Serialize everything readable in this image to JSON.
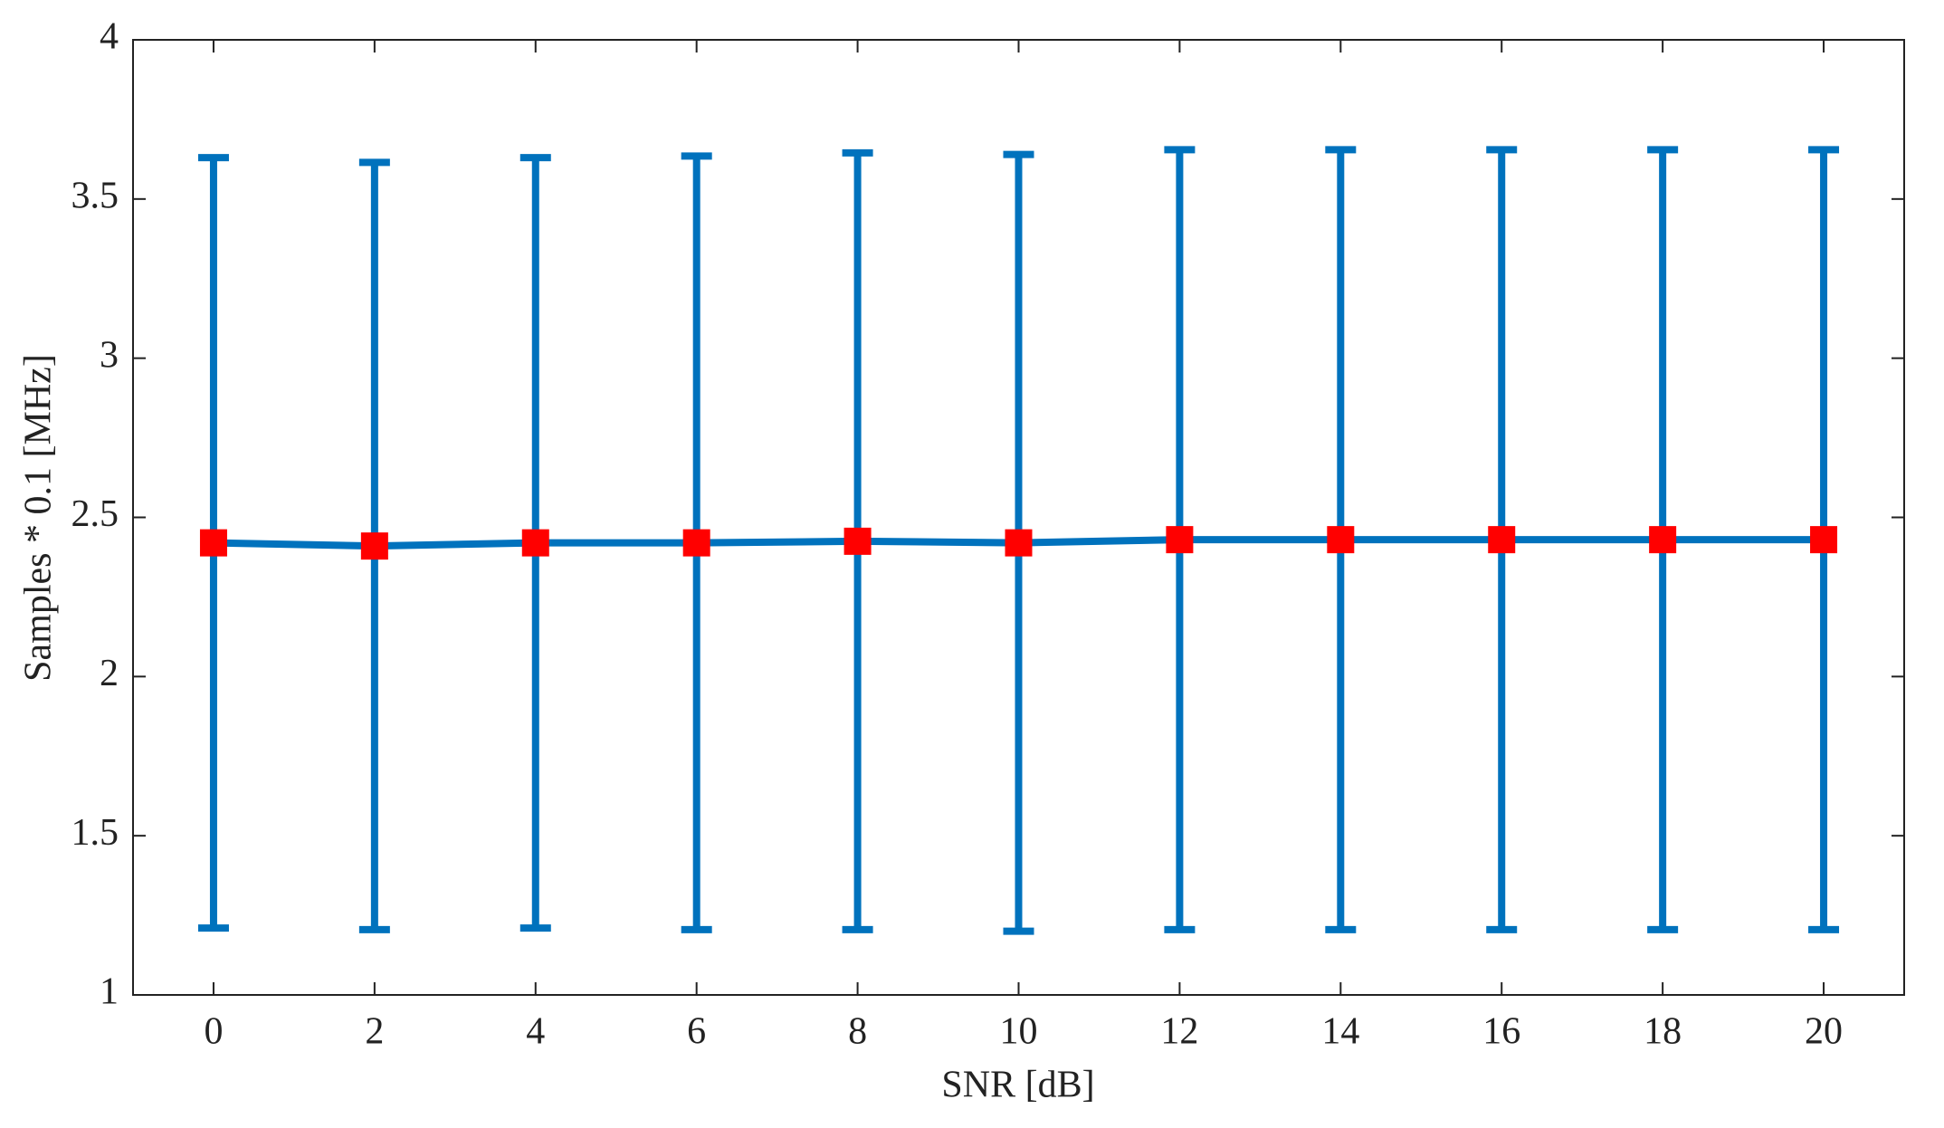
{
  "chart_data": {
    "type": "errorbar",
    "xlabel": "SNR [dB]",
    "ylabel": "Samples * 0.1 [MHz]",
    "x": [
      0,
      2,
      4,
      6,
      8,
      10,
      12,
      14,
      16,
      18,
      20
    ],
    "series": [
      {
        "color": "#0072bd",
        "marker_color": "#ff0000",
        "values": [
          2.42,
          2.41,
          2.42,
          2.42,
          2.425,
          2.42,
          2.43,
          2.43,
          2.43,
          2.43,
          2.43
        ],
        "errors": [
          1.21,
          1.205,
          1.21,
          1.215,
          1.22,
          1.22,
          1.225,
          1.225,
          1.225,
          1.225,
          1.225
        ]
      }
    ],
    "xlim": [
      -1,
      21
    ],
    "xticks": [
      0,
      2,
      4,
      6,
      8,
      10,
      12,
      14,
      16,
      18,
      20
    ],
    "ylim": [
      1,
      4
    ],
    "yticks": [
      1,
      1.5,
      2,
      2.5,
      3,
      3.5,
      4
    ],
    "grid": false
  }
}
